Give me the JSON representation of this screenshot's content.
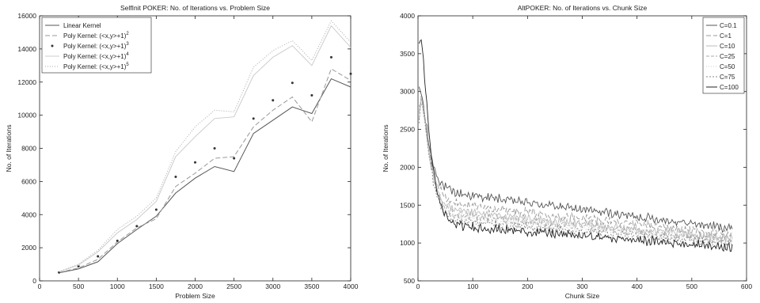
{
  "chart_data": [
    {
      "type": "line",
      "title": "SelfInit POKER: No. of Iterations vs. Problem Size",
      "xlabel": "Problem Size",
      "ylabel": "No. of Iterations",
      "xlim": [
        0,
        4000
      ],
      "ylim": [
        0,
        16000
      ],
      "xticks": [
        0,
        500,
        1000,
        1500,
        2000,
        2500,
        3000,
        3500,
        4000
      ],
      "yticks": [
        0,
        2000,
        4000,
        6000,
        8000,
        10000,
        12000,
        14000,
        16000
      ],
      "grid": false,
      "legend_position": "top-left",
      "x": [
        250,
        500,
        750,
        1000,
        1250,
        1500,
        1750,
        2000,
        2250,
        2500,
        2750,
        3000,
        3250,
        3500,
        3750,
        4000
      ],
      "series": [
        {
          "name": "Linear Kernel",
          "color": "#555555",
          "dash": "",
          "marker": "none",
          "values": [
            480,
            720,
            1150,
            2250,
            3100,
            3900,
            5300,
            6200,
            6900,
            6600,
            8900,
            9700,
            10500,
            10100,
            12200,
            11700
          ]
        },
        {
          "name": "Poly Kernel: (<x,y>+1)",
          "sup": "2",
          "color": "#999999",
          "dash": "6,3",
          "marker": "none",
          "values": [
            500,
            780,
            1300,
            2350,
            3200,
            3750,
            5700,
            6500,
            7400,
            7500,
            9300,
            10300,
            11100,
            9600,
            12800,
            12100
          ]
        },
        {
          "name": "Poly Kernel: (<x,y>+1)",
          "sup": "3",
          "color": "#333333",
          "dash": "",
          "marker": "dot",
          "values": [
            510,
            880,
            1480,
            2420,
            3300,
            4300,
            6280,
            7150,
            8000,
            7400,
            9800,
            10900,
            11950,
            11200,
            13500,
            12500
          ]
        },
        {
          "name": "Poly Kernel: (<x,y>+1)",
          "sup": "4",
          "color": "#cccccc",
          "dash": "",
          "marker": "none",
          "values": [
            540,
            950,
            1750,
            2900,
            3700,
            4800,
            7500,
            8700,
            9800,
            9900,
            12400,
            13500,
            14200,
            13000,
            15400,
            14100
          ]
        },
        {
          "name": "Poly Kernel: (<x,y>+1)",
          "sup": "5",
          "color": "#aaaaaa",
          "dash": "1,2",
          "marker": "none",
          "values": [
            560,
            1000,
            1850,
            3100,
            3900,
            5000,
            7800,
            9300,
            10300,
            10200,
            12900,
            13900,
            14500,
            13300,
            15700,
            14400
          ]
        }
      ]
    },
    {
      "type": "line",
      "title": "AltPOKER: No. of Iterations vs. Chunk Size",
      "xlabel": "Chunk Size",
      "ylabel": "No. of Iterations",
      "xlim": [
        0,
        600
      ],
      "ylim": [
        500,
        4000
      ],
      "xticks": [
        0,
        100,
        200,
        300,
        400,
        500,
        600
      ],
      "yticks": [
        500,
        1000,
        1500,
        2000,
        2500,
        3000,
        3500,
        4000
      ],
      "grid": false,
      "legend_position": "top-right",
      "x_range": [
        2,
        575
      ],
      "series": [
        {
          "name": "C=0.1",
          "color": "#555555",
          "dash": "",
          "start": 3000,
          "mid": 1660,
          "end": 1190
        },
        {
          "name": "C=1",
          "color": "#999999",
          "dash": "6,3",
          "start": 2800,
          "mid": 1520,
          "end": 1110
        },
        {
          "name": "C=10",
          "color": "#bbbbbb",
          "dash": "",
          "start": 2700,
          "mid": 1420,
          "end": 1060
        },
        {
          "name": "C=25",
          "color": "#aaaaaa",
          "dash": "4,2",
          "start": 2650,
          "mid": 1380,
          "end": 1040
        },
        {
          "name": "C=50",
          "color": "#cccccc",
          "dash": "1,2",
          "start": 2600,
          "mid": 1350,
          "end": 1020
        },
        {
          "name": "C=75",
          "color": "#888888",
          "dash": "2,2",
          "start": 2550,
          "mid": 1300,
          "end": 1000
        },
        {
          "name": "C=100",
          "color": "#222222",
          "dash": "",
          "start": 3600,
          "mid": 1230,
          "end": 940
        }
      ]
    }
  ]
}
